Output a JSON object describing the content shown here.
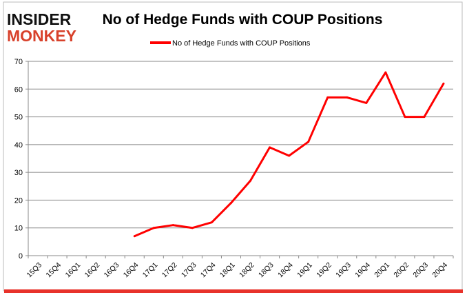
{
  "logo": {
    "line1": "INSIDER",
    "line2": "MONKEY"
  },
  "chart_data": {
    "type": "line",
    "title": "No of Hedge Funds with COUP Positions",
    "xlabel": "",
    "ylabel": "",
    "ylim": [
      0,
      70
    ],
    "yticks": [
      0,
      10,
      20,
      30,
      40,
      50,
      60,
      70
    ],
    "grid": true,
    "legend_position": "top",
    "categories": [
      "15Q3",
      "15Q4",
      "16Q1",
      "16Q2",
      "16Q3",
      "16Q4",
      "17Q1",
      "17Q2",
      "17Q3",
      "17Q4",
      "18Q1",
      "18Q2",
      "18Q3",
      "18Q4",
      "19Q1",
      "19Q2",
      "19Q3",
      "19Q4",
      "20Q1",
      "20Q2",
      "20Q3",
      "20Q4"
    ],
    "series": [
      {
        "name": "No of Hedge Funds with COUP Positions",
        "color": "#ff0000",
        "values": [
          null,
          null,
          null,
          null,
          null,
          7,
          10,
          11,
          10,
          12,
          19,
          27,
          39,
          36,
          41,
          57,
          57,
          55,
          66,
          50,
          50,
          62
        ]
      }
    ]
  }
}
